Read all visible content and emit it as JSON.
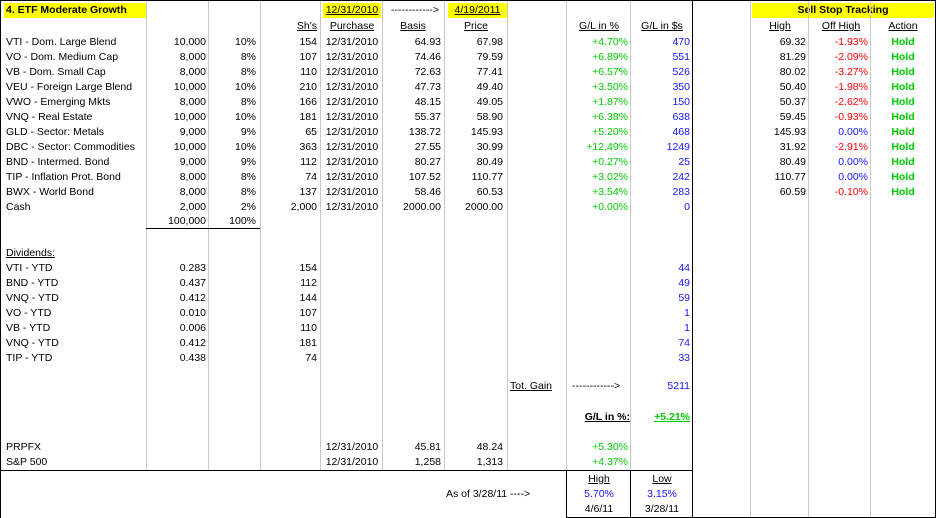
{
  "title": "4. ETF Moderate Growth",
  "header": {
    "sh": "Sh's",
    "date_from": "12/31/2010",
    "arrow": "------------>",
    "date_to": "4/19/2011",
    "purchase": "Purchase",
    "basis": "Basis",
    "price": "Price",
    "gl_pct": "G/L in %",
    "gl_usd": "G/L in $s"
  },
  "holdings": [
    {
      "name": "VTI - Dom. Large Blend",
      "alloc": "10,000",
      "pct": "10%",
      "shares": "154",
      "purchase": "12/31/2010",
      "basis": "64.93",
      "price": "67.98",
      "gl_pct": "+4.70%",
      "gl_usd": "470"
    },
    {
      "name": "VO - Dom. Medium Cap",
      "alloc": "8,000",
      "pct": "8%",
      "shares": "107",
      "purchase": "12/31/2010",
      "basis": "74.46",
      "price": "79.59",
      "gl_pct": "+6.89%",
      "gl_usd": "551"
    },
    {
      "name": "VB - Dom. Small Cap",
      "alloc": "8,000",
      "pct": "8%",
      "shares": "110",
      "purchase": "12/31/2010",
      "basis": "72.63",
      "price": "77.41",
      "gl_pct": "+6.57%",
      "gl_usd": "526"
    },
    {
      "name": "VEU - Foreign Large Blend",
      "alloc": "10,000",
      "pct": "10%",
      "shares": "210",
      "purchase": "12/31/2010",
      "basis": "47.73",
      "price": "49.40",
      "gl_pct": "+3.50%",
      "gl_usd": "350"
    },
    {
      "name": "VWO - Emerging Mkts",
      "alloc": "8,000",
      "pct": "8%",
      "shares": "166",
      "purchase": "12/31/2010",
      "basis": "48.15",
      "price": "49.05",
      "gl_pct": "+1.87%",
      "gl_usd": "150"
    },
    {
      "name": "VNQ - Real Estate",
      "alloc": "10,000",
      "pct": "10%",
      "shares": "181",
      "purchase": "12/31/2010",
      "basis": "55.37",
      "price": "58.90",
      "gl_pct": "+6.38%",
      "gl_usd": "638"
    },
    {
      "name": "GLD - Sector: Metals",
      "alloc": "9,000",
      "pct": "9%",
      "shares": "65",
      "purchase": "12/31/2010",
      "basis": "138.72",
      "price": "145.93",
      "gl_pct": "+5.20%",
      "gl_usd": "468"
    },
    {
      "name": "DBC - Sector: Commodities",
      "alloc": "10,000",
      "pct": "10%",
      "shares": "363",
      "purchase": "12/31/2010",
      "basis": "27.55",
      "price": "30.99",
      "gl_pct": "+12.49%",
      "gl_usd": "1249"
    },
    {
      "name": "BND - Intermed. Bond",
      "alloc": "9,000",
      "pct": "9%",
      "shares": "112",
      "purchase": "12/31/2010",
      "basis": "80.27",
      "price": "80.49",
      "gl_pct": "+0.27%",
      "gl_usd": "25"
    },
    {
      "name": "TIP - Inflation Prot. Bond",
      "alloc": "8,000",
      "pct": "8%",
      "shares": "74",
      "purchase": "12/31/2010",
      "basis": "107.52",
      "price": "110.77",
      "gl_pct": "+3.02%",
      "gl_usd": "242"
    },
    {
      "name": "BWX - World Bond",
      "alloc": "8,000",
      "pct": "8%",
      "shares": "137",
      "purchase": "12/31/2010",
      "basis": "58.46",
      "price": "60.53",
      "gl_pct": "+3.54%",
      "gl_usd": "283"
    },
    {
      "name": "Cash",
      "alloc": "2,000",
      "pct": "2%",
      "shares": "2,000",
      "purchase": "12/31/2010",
      "basis": "2000.00",
      "price": "2000.00",
      "gl_pct": "+0.00%",
      "gl_usd": "0"
    }
  ],
  "totals": {
    "alloc": "100,000",
    "pct": "100%"
  },
  "dividends_label": "Dividends:",
  "dividends": [
    {
      "name": "VTI - YTD",
      "amount": "0.283",
      "shares": "154",
      "usd": "44"
    },
    {
      "name": "BND - YTD",
      "amount": "0.437",
      "shares": "112",
      "usd": "49"
    },
    {
      "name": "VNQ - YTD",
      "amount": "0.412",
      "shares": "144",
      "usd": "59"
    },
    {
      "name": "VO - YTD",
      "amount": "0.010",
      "shares": "107",
      "usd": "1"
    },
    {
      "name": "VB - YTD",
      "amount": "0.006",
      "shares": "110",
      "usd": "1"
    },
    {
      "name": "VNQ - YTD",
      "amount": "0.412",
      "shares": "181",
      "usd": "74"
    },
    {
      "name": "TIP - YTD",
      "amount": "0.438",
      "shares": "74",
      "usd": "33"
    }
  ],
  "summary": {
    "tot_gain_label": "Tot. Gain",
    "tot_gain_arrow": "------------>",
    "tot_gain": "5211",
    "gl_label": "G/L in %:",
    "gl_pct": "+5.21%"
  },
  "benchmarks": [
    {
      "name": "PRPFX",
      "purchase": "12/31/2010",
      "basis": "45.81",
      "price": "48.24",
      "gl_pct": "+5.30%"
    },
    {
      "name": "S&P 500",
      "purchase": "12/31/2010",
      "basis": "1,258",
      "price": "1,313",
      "gl_pct": "+4.37%"
    }
  ],
  "highlow": {
    "as_of": "As of 3/28/11 ---->",
    "high_label": "High",
    "low_label": "Low",
    "high_pct": "5.70%",
    "low_pct": "3.15%",
    "high_date": "4/6/11",
    "low_date": "3/28/11"
  },
  "sellstop": {
    "title": "Sell Stop Tracking",
    "col_high": "High",
    "col_off": "Off High",
    "col_action": "Action",
    "rows": [
      {
        "high": "69.32",
        "off": "-1.93%",
        "action": "Hold"
      },
      {
        "high": "81.29",
        "off": "-2.09%",
        "action": "Hold"
      },
      {
        "high": "80.02",
        "off": "-3.27%",
        "action": "Hold"
      },
      {
        "high": "50.40",
        "off": "-1.98%",
        "action": "Hold"
      },
      {
        "high": "50.37",
        "off": "-2.62%",
        "action": "Hold"
      },
      {
        "high": "59.45",
        "off": "-0.93%",
        "action": "Hold"
      },
      {
        "high": "145.93",
        "off": "0.00%",
        "action": "Hold"
      },
      {
        "high": "31.92",
        "off": "-2.91%",
        "action": "Hold"
      },
      {
        "high": "80.49",
        "off": "0.00%",
        "action": "Hold"
      },
      {
        "high": "110.77",
        "off": "0.00%",
        "action": "Hold"
      },
      {
        "high": "60.59",
        "off": "-0.10%",
        "action": "Hold"
      }
    ]
  },
  "colors": {
    "highlight": "#ffff00",
    "positive": "#00cc00",
    "negative": "#ff0000",
    "usd": "#1515ff"
  }
}
